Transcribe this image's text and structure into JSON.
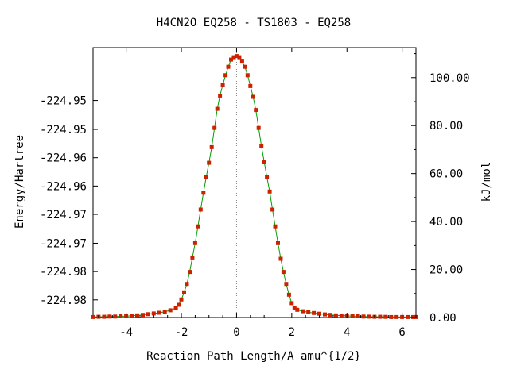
{
  "chart_data": {
    "type": "scatter",
    "title": "H4CN2O   EQ258 - TS1803 - EQ258",
    "xlabel": "Reaction Path Length/A amu^{1/2}",
    "ylabel": "Energy/Hartree",
    "y2label": "kJ/mol",
    "xlim": [
      -5.2,
      6.5
    ],
    "ylim": [
      -224.9862,
      -224.9433
    ],
    "y2lim": [
      0,
      112.5
    ],
    "x_ticks": [
      -4,
      -2,
      0,
      2,
      4,
      6
    ],
    "x_tick_labels": [
      "-4",
      "-2",
      "0",
      "2",
      "4",
      "6"
    ],
    "y_tick_values": [
      -224.9834,
      -224.9789,
      -224.9744,
      -224.9698,
      -224.9653,
      -224.9608,
      -224.9563,
      -224.9517
    ],
    "y_tick_labels": [
      "-224.98",
      "-224.98",
      "-224.97",
      "-224.97",
      "-224.96",
      "-224.96",
      "-224.95",
      "-224.95"
    ],
    "y2_ticks": [
      0,
      20,
      40,
      60,
      80,
      100
    ],
    "y2_tick_labels": [
      "0.00",
      "20.00",
      "40.00",
      "60.00",
      "80.00",
      "100.00"
    ],
    "grid": false,
    "legend": "none",
    "ts_marker_x": 0,
    "series": [
      {
        "color_line": "#00a000",
        "color_marker": "#cc2200",
        "x": [
          -5.2,
          -5.0,
          -4.8,
          -4.6,
          -4.4,
          -4.2,
          -4.0,
          -3.8,
          -3.6,
          -3.4,
          -3.2,
          -3.0,
          -2.8,
          -2.6,
          -2.4,
          -2.2,
          -2.1,
          -2.0,
          -1.9,
          -1.8,
          -1.7,
          -1.6,
          -1.5,
          -1.4,
          -1.3,
          -1.2,
          -1.1,
          -1.0,
          -0.9,
          -0.8,
          -0.7,
          -0.6,
          -0.5,
          -0.4,
          -0.3,
          -0.2,
          -0.1,
          0.0,
          0.1,
          0.2,
          0.3,
          0.4,
          0.5,
          0.6,
          0.7,
          0.8,
          0.9,
          1.0,
          1.1,
          1.2,
          1.3,
          1.4,
          1.5,
          1.6,
          1.7,
          1.8,
          1.9,
          2.0,
          2.1,
          2.2,
          2.4,
          2.6,
          2.8,
          3.0,
          3.2,
          3.4,
          3.6,
          3.8,
          4.0,
          4.2,
          4.4,
          4.6,
          4.8,
          5.0,
          5.2,
          5.4,
          5.6,
          5.8,
          6.0,
          6.2,
          6.4,
          6.5
        ],
        "y": [
          0.2,
          0.3,
          0.3,
          0.4,
          0.4,
          0.5,
          0.6,
          0.7,
          0.9,
          1.1,
          1.4,
          1.7,
          2.0,
          2.4,
          3.0,
          4.0,
          5.3,
          7.5,
          10.5,
          14.0,
          19.0,
          25.0,
          31.0,
          38.0,
          45.0,
          52.0,
          58.5,
          64.5,
          71.0,
          79.0,
          87.0,
          92.5,
          97.0,
          101.0,
          104.5,
          107.5,
          108.5,
          109.0,
          108.5,
          107.0,
          104.5,
          101.0,
          96.5,
          92.0,
          86.5,
          79.0,
          71.5,
          65.0,
          58.5,
          52.5,
          45.0,
          38.0,
          31.0,
          24.5,
          19.0,
          14.0,
          9.5,
          6.0,
          4.0,
          3.2,
          2.6,
          2.2,
          1.9,
          1.6,
          1.3,
          1.1,
          0.9,
          0.8,
          0.7,
          0.6,
          0.5,
          0.4,
          0.35,
          0.3,
          0.3,
          0.25,
          0.2,
          0.2,
          0.2,
          0.2,
          0.2,
          0.2
        ]
      }
    ]
  }
}
